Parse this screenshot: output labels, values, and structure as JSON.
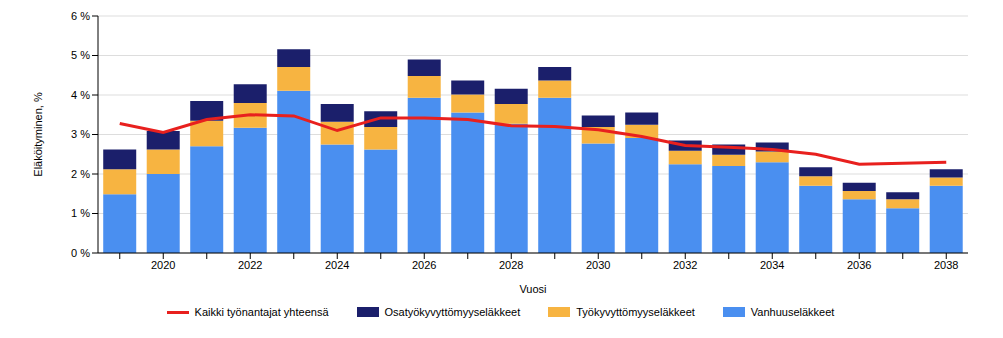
{
  "chart_data": {
    "type": "bar",
    "stacked": true,
    "grid": true,
    "x_label": "Vuosi",
    "y_label": "Eläköityminen, %",
    "categories": [
      null,
      "2020",
      null,
      "2022",
      null,
      "2024",
      null,
      "2026",
      null,
      "2028",
      null,
      "2030",
      null,
      "2032",
      null,
      "2034",
      null,
      "2036",
      null,
      "2038"
    ],
    "ylim": [
      0,
      6
    ],
    "yticks": [
      {
        "value": 0,
        "label": "0 %"
      },
      {
        "value": 1,
        "label": "1 %"
      },
      {
        "value": 2,
        "label": "2 %"
      },
      {
        "value": 3,
        "label": "3 %"
      },
      {
        "value": 4,
        "label": "4 %"
      },
      {
        "value": 5,
        "label": "5 %"
      },
      {
        "value": 6,
        "label": "6 %"
      }
    ],
    "legend": "bottom",
    "series": [
      {
        "name": "Vanhuuseläkkeet",
        "type": "bar",
        "color": "#4a8ff0",
        "values": [
          1.49,
          2.0,
          2.7,
          3.17,
          4.11,
          2.75,
          2.62,
          3.93,
          3.56,
          3.27,
          3.93,
          2.77,
          2.91,
          2.25,
          2.2,
          2.3,
          1.7,
          1.36,
          1.13,
          1.7
        ]
      },
      {
        "name": "Työkyvyttömyyseläkkeet",
        "type": "bar",
        "color": "#f7b441",
        "values": [
          0.63,
          0.62,
          0.65,
          0.63,
          0.6,
          0.57,
          0.57,
          0.55,
          0.45,
          0.5,
          0.44,
          0.42,
          0.34,
          0.34,
          0.29,
          0.27,
          0.24,
          0.21,
          0.23,
          0.21
        ]
      },
      {
        "name": "Osatyökyvyttömyyseläkkeet",
        "type": "bar",
        "color": "#1b1f6b",
        "values": [
          0.5,
          0.47,
          0.5,
          0.47,
          0.45,
          0.45,
          0.4,
          0.42,
          0.36,
          0.39,
          0.34,
          0.29,
          0.31,
          0.26,
          0.26,
          0.23,
          0.23,
          0.21,
          0.18,
          0.21
        ]
      },
      {
        "name": "Kaikki työnantajat yhteensä",
        "type": "line",
        "color": "#e8201e",
        "values": [
          3.28,
          3.05,
          3.38,
          3.5,
          3.47,
          3.1,
          3.42,
          3.42,
          3.38,
          3.22,
          3.2,
          3.12,
          2.95,
          2.72,
          2.68,
          2.62,
          2.5,
          2.25,
          2.27,
          2.3
        ]
      }
    ]
  }
}
